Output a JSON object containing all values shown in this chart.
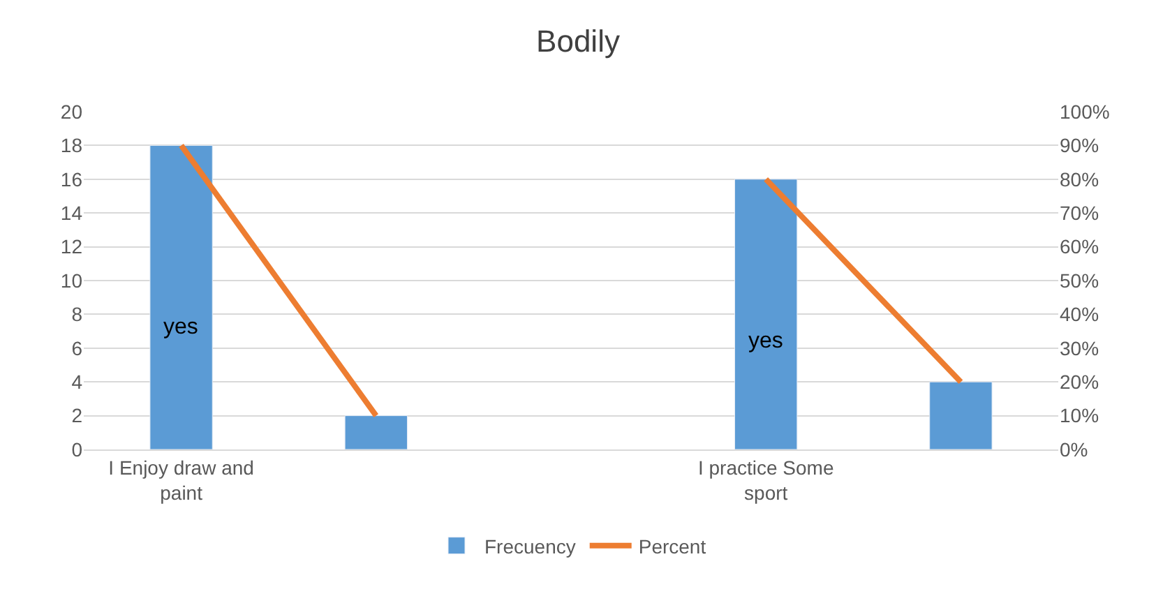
{
  "chart_data": {
    "type": "bar",
    "title": "Bodily",
    "categories": [
      "I Enjoy draw and paint",
      null,
      null,
      "I practice Some sport",
      null
    ],
    "series": [
      {
        "name": "Frecuency",
        "color": "#5b9bd5",
        "values": [
          18,
          2,
          null,
          16,
          4
        ]
      },
      {
        "name": "Percent",
        "type": "line",
        "axis": "y2",
        "color": "#ed7d31",
        "values": [
          90,
          10,
          null,
          80,
          20
        ]
      }
    ],
    "ylim": [
      0,
      20
    ],
    "yticks": [
      0,
      2,
      4,
      6,
      8,
      10,
      12,
      14,
      16,
      18,
      20
    ],
    "y2lim": [
      0,
      100
    ],
    "y2ticks": [
      {
        "value": 0,
        "label": "0%"
      },
      {
        "value": 10,
        "label": "10%"
      },
      {
        "value": 20,
        "label": "20%"
      },
      {
        "value": 30,
        "label": "30%"
      },
      {
        "value": 40,
        "label": "40%"
      },
      {
        "value": 50,
        "label": "50%"
      },
      {
        "value": 60,
        "label": "60%"
      },
      {
        "value": 70,
        "label": "70%"
      },
      {
        "value": 80,
        "label": "80%"
      },
      {
        "value": 90,
        "label": "90%"
      },
      {
        "value": 100,
        "label": "100%"
      }
    ],
    "annotations": [
      "yes",
      "yes"
    ],
    "grid": "y",
    "legend": "bottom",
    "marker": "none",
    "line_style": "solid"
  }
}
